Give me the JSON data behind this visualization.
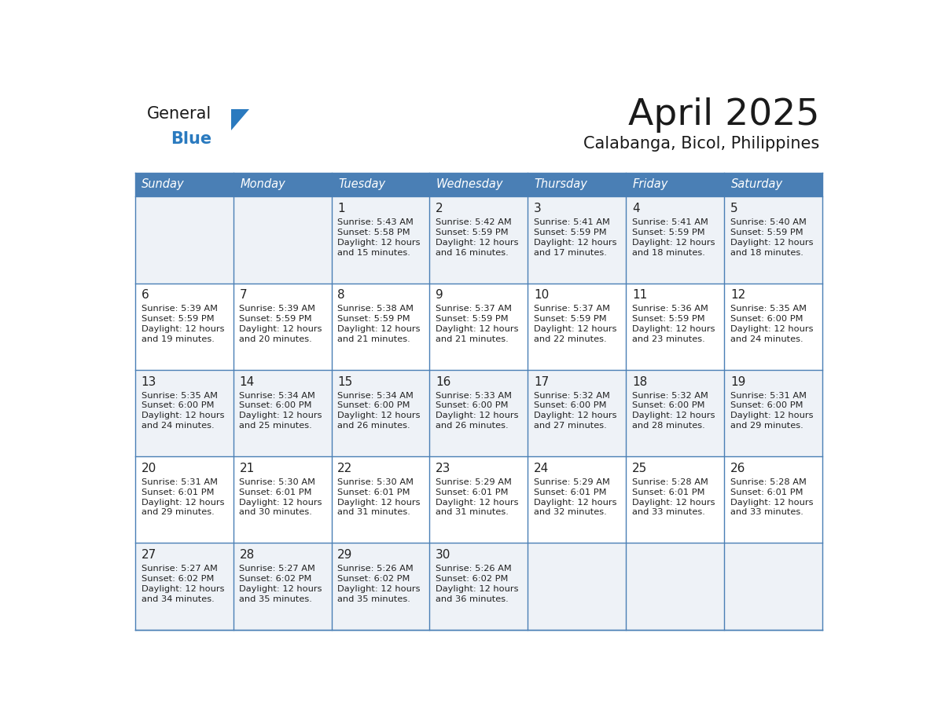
{
  "title": "April 2025",
  "subtitle": "Calabanga, Bicol, Philippines",
  "days_of_week": [
    "Sunday",
    "Monday",
    "Tuesday",
    "Wednesday",
    "Thursday",
    "Friday",
    "Saturday"
  ],
  "header_bg_color": "#4A7FB5",
  "header_text_color": "#FFFFFF",
  "row_bg_light": "#EEF2F7",
  "row_bg_white": "#FFFFFF",
  "border_color": "#4A7FB5",
  "title_color": "#1a1a1a",
  "subtitle_color": "#1a1a1a",
  "cell_text_color": "#222222",
  "day_number_color": "#222222",
  "logo_general_color": "#1a1a1a",
  "logo_blue_color": "#2A7ABF",
  "weeks": [
    [
      {
        "day": "",
        "sunrise": "",
        "sunset": "",
        "daylight_mins": ""
      },
      {
        "day": "",
        "sunrise": "",
        "sunset": "",
        "daylight_mins": ""
      },
      {
        "day": "1",
        "sunrise": "5:43 AM",
        "sunset": "5:58 PM",
        "daylight_mins": "15"
      },
      {
        "day": "2",
        "sunrise": "5:42 AM",
        "sunset": "5:59 PM",
        "daylight_mins": "16"
      },
      {
        "day": "3",
        "sunrise": "5:41 AM",
        "sunset": "5:59 PM",
        "daylight_mins": "17"
      },
      {
        "day": "4",
        "sunrise": "5:41 AM",
        "sunset": "5:59 PM",
        "daylight_mins": "18"
      },
      {
        "day": "5",
        "sunrise": "5:40 AM",
        "sunset": "5:59 PM",
        "daylight_mins": "18"
      }
    ],
    [
      {
        "day": "6",
        "sunrise": "5:39 AM",
        "sunset": "5:59 PM",
        "daylight_mins": "19"
      },
      {
        "day": "7",
        "sunrise": "5:39 AM",
        "sunset": "5:59 PM",
        "daylight_mins": "20"
      },
      {
        "day": "8",
        "sunrise": "5:38 AM",
        "sunset": "5:59 PM",
        "daylight_mins": "21"
      },
      {
        "day": "9",
        "sunrise": "5:37 AM",
        "sunset": "5:59 PM",
        "daylight_mins": "21"
      },
      {
        "day": "10",
        "sunrise": "5:37 AM",
        "sunset": "5:59 PM",
        "daylight_mins": "22"
      },
      {
        "day": "11",
        "sunrise": "5:36 AM",
        "sunset": "5:59 PM",
        "daylight_mins": "23"
      },
      {
        "day": "12",
        "sunrise": "5:35 AM",
        "sunset": "6:00 PM",
        "daylight_mins": "24"
      }
    ],
    [
      {
        "day": "13",
        "sunrise": "5:35 AM",
        "sunset": "6:00 PM",
        "daylight_mins": "24"
      },
      {
        "day": "14",
        "sunrise": "5:34 AM",
        "sunset": "6:00 PM",
        "daylight_mins": "25"
      },
      {
        "day": "15",
        "sunrise": "5:34 AM",
        "sunset": "6:00 PM",
        "daylight_mins": "26"
      },
      {
        "day": "16",
        "sunrise": "5:33 AM",
        "sunset": "6:00 PM",
        "daylight_mins": "26"
      },
      {
        "day": "17",
        "sunrise": "5:32 AM",
        "sunset": "6:00 PM",
        "daylight_mins": "27"
      },
      {
        "day": "18",
        "sunrise": "5:32 AM",
        "sunset": "6:00 PM",
        "daylight_mins": "28"
      },
      {
        "day": "19",
        "sunrise": "5:31 AM",
        "sunset": "6:00 PM",
        "daylight_mins": "29"
      }
    ],
    [
      {
        "day": "20",
        "sunrise": "5:31 AM",
        "sunset": "6:01 PM",
        "daylight_mins": "29"
      },
      {
        "day": "21",
        "sunrise": "5:30 AM",
        "sunset": "6:01 PM",
        "daylight_mins": "30"
      },
      {
        "day": "22",
        "sunrise": "5:30 AM",
        "sunset": "6:01 PM",
        "daylight_mins": "31"
      },
      {
        "day": "23",
        "sunrise": "5:29 AM",
        "sunset": "6:01 PM",
        "daylight_mins": "31"
      },
      {
        "day": "24",
        "sunrise": "5:29 AM",
        "sunset": "6:01 PM",
        "daylight_mins": "32"
      },
      {
        "day": "25",
        "sunrise": "5:28 AM",
        "sunset": "6:01 PM",
        "daylight_mins": "33"
      },
      {
        "day": "26",
        "sunrise": "5:28 AM",
        "sunset": "6:01 PM",
        "daylight_mins": "33"
      }
    ],
    [
      {
        "day": "27",
        "sunrise": "5:27 AM",
        "sunset": "6:02 PM",
        "daylight_mins": "34"
      },
      {
        "day": "28",
        "sunrise": "5:27 AM",
        "sunset": "6:02 PM",
        "daylight_mins": "35"
      },
      {
        "day": "29",
        "sunrise": "5:26 AM",
        "sunset": "6:02 PM",
        "daylight_mins": "35"
      },
      {
        "day": "30",
        "sunrise": "5:26 AM",
        "sunset": "6:02 PM",
        "daylight_mins": "36"
      },
      {
        "day": "",
        "sunrise": "",
        "sunset": "",
        "daylight_mins": ""
      },
      {
        "day": "",
        "sunrise": "",
        "sunset": "",
        "daylight_mins": ""
      },
      {
        "day": "",
        "sunrise": "",
        "sunset": "",
        "daylight_mins": ""
      }
    ]
  ]
}
